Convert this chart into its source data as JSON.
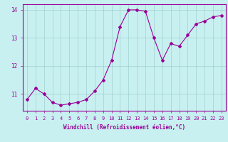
{
  "xlabel": "Windchill (Refroidissement éolien,°C)",
  "background_color": "#c8f0f0",
  "grid_color": "#a0d0d0",
  "line_color": "#990099",
  "x_data": [
    0,
    1,
    2,
    3,
    4,
    5,
    6,
    7,
    8,
    9,
    10,
    11,
    12,
    13,
    14,
    15,
    16,
    17,
    18,
    19,
    20,
    21,
    22,
    23
  ],
  "y_data": [
    10.8,
    11.2,
    11.0,
    10.7,
    10.6,
    10.65,
    10.7,
    10.8,
    11.1,
    11.5,
    12.2,
    13.4,
    14.0,
    14.0,
    13.95,
    13.0,
    12.2,
    12.8,
    12.7,
    13.1,
    13.5,
    13.6,
    13.75,
    13.8
  ],
  "xlim": [
    -0.5,
    23.5
  ],
  "ylim": [
    10.4,
    14.2
  ],
  "yticks": [
    11,
    12,
    13,
    14
  ],
  "xticks": [
    0,
    1,
    2,
    3,
    4,
    5,
    6,
    7,
    8,
    9,
    10,
    11,
    12,
    13,
    14,
    15,
    16,
    17,
    18,
    19,
    20,
    21,
    22,
    23
  ],
  "marker": "D",
  "marker_size": 2,
  "line_width": 0.8,
  "tick_fontsize": 5,
  "xlabel_fontsize": 5.5
}
